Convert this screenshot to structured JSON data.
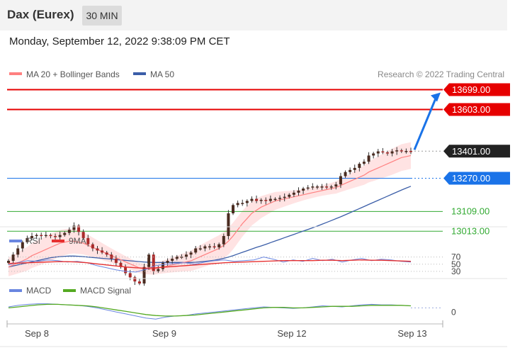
{
  "header": {
    "title": "Dax (Eurex)",
    "interval": "30 MIN",
    "datetime": "Monday, September 12, 2022 9:38:09 PM CET"
  },
  "credit": "Research © 2022 Trading Central",
  "colors": {
    "ma20": "#ff8080",
    "band": "#ffd9d9",
    "ma50": "#3b5ea8",
    "resistance": "#e60000",
    "support": "#33aa33",
    "pivot": "#1a73e8",
    "last": "#222222",
    "rsi": "#6a86e0",
    "rsi_ma": "#e63030",
    "macd": "#6a86e0",
    "macd_signal": "#55aa22",
    "candle_up": "#4a2b20",
    "candle_down": "#aa2a2a"
  },
  "chart_data": [
    {
      "type": "candlestick",
      "title": "Dax (Eurex) 30 MIN",
      "x_ticks": [
        "Sep 8",
        "Sep 9",
        "Sep 12",
        "Sep 13"
      ],
      "ylim": [
        12760,
        13790
      ],
      "legend": [
        {
          "label": "MA 20 + Bollinger Bands",
          "color": "#ff8080"
        },
        {
          "label": "MA 50",
          "color": "#3b5ea8"
        }
      ],
      "levels": [
        {
          "value": 13699.0,
          "label": "13699.00",
          "kind": "resistance"
        },
        {
          "value": 13603.0,
          "label": "13603.00",
          "kind": "resistance"
        },
        {
          "value": 13401.0,
          "label": "13401.00",
          "kind": "last"
        },
        {
          "value": 13270.0,
          "label": "13270.00",
          "kind": "pivot"
        },
        {
          "value": 13109.0,
          "label": "13109.00",
          "kind": "support"
        },
        {
          "value": 13013.0,
          "label": "13013.00",
          "kind": "support"
        }
      ],
      "target_arrow": {
        "from": 13401.0,
        "to": 13699.0
      },
      "close": [
        12870,
        12900,
        12930,
        12960,
        12980,
        12990,
        12995,
        12990,
        12995,
        12990,
        12985,
        12995,
        13005,
        13020,
        13040,
        13010,
        12980,
        12950,
        12930,
        12920,
        12910,
        12900,
        12880,
        12860,
        12840,
        12810,
        12790,
        12770,
        12760,
        12840,
        12900,
        12820,
        12830,
        12860,
        12870,
        12880,
        12890,
        12890,
        12900,
        12910,
        12930,
        12930,
        12940,
        12940,
        12935,
        12950,
        12990,
        13100,
        13140,
        13150,
        13150,
        13160,
        13170,
        13160,
        13165,
        13160,
        13170,
        13170,
        13175,
        13180,
        13190,
        13200,
        13210,
        13220,
        13225,
        13230,
        13230,
        13230,
        13225,
        13230,
        13240,
        13280,
        13300,
        13310,
        13320,
        13340,
        13350,
        13380,
        13390,
        13400,
        13395,
        13390,
        13400,
        13405,
        13400,
        13402,
        13401
      ],
      "ma20": [
        12840,
        12850,
        12860,
        12870,
        12880,
        12895,
        12905,
        12915,
        12925,
        12935,
        12945,
        12955,
        12960,
        12965,
        12965,
        12960,
        12955,
        12945,
        12935,
        12925,
        12915,
        12905,
        12895,
        12885,
        12875,
        12865,
        12855,
        12845,
        12835,
        12830,
        12830,
        12830,
        12835,
        12840,
        12845,
        12850,
        12855,
        12860,
        12865,
        12870,
        12880,
        12890,
        12900,
        12910,
        12920,
        12930,
        12945,
        12965,
        12990,
        13020,
        13050,
        13075,
        13100,
        13115,
        13130,
        13140,
        13150,
        13160,
        13165,
        13170,
        13175,
        13180,
        13185,
        13190,
        13195,
        13200,
        13205,
        13210,
        13215,
        13220,
        13225,
        13235,
        13245,
        13255,
        13265,
        13275,
        13285,
        13300,
        13310,
        13320,
        13330,
        13340,
        13350,
        13360,
        13370,
        13375,
        13380
      ],
      "ma50": [
        12840,
        12845,
        12850,
        12855,
        12860,
        12865,
        12870,
        12875,
        12880,
        12885,
        12888,
        12890,
        12892,
        12893,
        12893,
        12892,
        12890,
        12888,
        12886,
        12884,
        12882,
        12880,
        12878,
        12876,
        12874,
        12872,
        12870,
        12868,
        12866,
        12864,
        12863,
        12862,
        12862,
        12862,
        12862,
        12862,
        12862,
        12862,
        12862,
        12862,
        12863,
        12865,
        12867,
        12870,
        12873,
        12877,
        12882,
        12888,
        12895,
        12903,
        12911,
        12919,
        12927,
        12935,
        12942,
        12950,
        12958,
        12966,
        12974,
        12982,
        12990,
        12998,
        13006,
        13014,
        13022,
        13030,
        13038,
        13047,
        13056,
        13065,
        13074,
        13083,
        13093,
        13103,
        13113,
        13123,
        13133,
        13143,
        13153,
        13163,
        13173,
        13183,
        13193,
        13203,
        13213,
        13222,
        13231
      ]
    },
    {
      "type": "line",
      "title": "RSI",
      "legend": [
        {
          "label": "RSI",
          "color": "#6a86e0"
        },
        {
          "label": "9MA",
          "color": "#e63030"
        }
      ],
      "y_ticks": [
        "70",
        "50",
        "30"
      ],
      "ylim": [
        20,
        85
      ],
      "rsi": [
        48,
        55,
        60,
        58,
        62,
        60,
        56,
        58,
        54,
        46,
        40,
        34,
        30,
        28,
        36,
        46,
        50,
        52,
        54,
        50,
        56,
        60,
        62,
        58,
        60,
        62,
        70,
        64,
        56,
        62,
        58,
        66,
        60,
        64,
        56,
        62,
        66,
        60,
        64,
        62,
        58,
        56
      ],
      "rsi_ma": [
        52,
        53,
        54,
        55,
        56,
        57,
        57,
        56,
        54,
        51,
        48,
        45,
        42,
        40,
        39,
        40,
        42,
        44,
        46,
        48,
        50,
        52,
        54,
        55,
        56,
        57,
        58,
        59,
        60,
        60,
        60,
        60,
        61,
        61,
        60,
        61,
        62,
        61,
        61,
        60,
        59,
        58
      ]
    },
    {
      "type": "line",
      "title": "MACD",
      "legend": [
        {
          "label": "MACD",
          "color": "#6a86e0"
        },
        {
          "label": "MACD Signal",
          "color": "#55aa22"
        }
      ],
      "y_ticks": [
        "0"
      ],
      "ylim": [
        -30,
        20
      ],
      "macd": [
        2,
        5,
        7,
        8,
        8,
        7,
        6,
        5,
        3,
        0,
        -4,
        -8,
        -12,
        -16,
        -20,
        -22,
        -18,
        -16,
        -15,
        -12,
        -10,
        -8,
        -6,
        -4,
        -2,
        0,
        2,
        1,
        0,
        -1,
        0,
        2,
        4,
        3,
        2,
        4,
        6,
        7,
        6,
        6,
        5,
        4
      ],
      "macd_signal": [
        0,
        2,
        4,
        6,
        7,
        7,
        6,
        5,
        4,
        2,
        -1,
        -4,
        -7,
        -10,
        -13,
        -15,
        -16,
        -16,
        -15,
        -14,
        -12,
        -10,
        -8,
        -6,
        -4,
        -2,
        0,
        1,
        1,
        0,
        0,
        1,
        2,
        3,
        3,
        3,
        4,
        5,
        5,
        5,
        5,
        4
      ]
    }
  ]
}
